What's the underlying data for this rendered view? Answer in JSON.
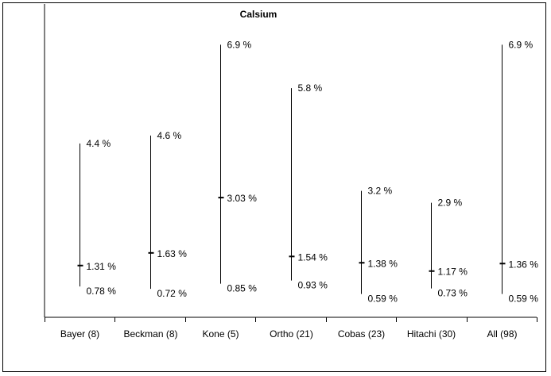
{
  "chart_data": {
    "type": "range",
    "title": "Calsium",
    "categories": [
      "Bayer (8)",
      "Beckman (8)",
      "Kone (5)",
      "Ortho (21)",
      "Cobas (23)",
      "Hitachi (30)",
      "All (98)"
    ],
    "series": [
      {
        "values": [
          0.78,
          0.72,
          0.85,
          0.93,
          0.59,
          0.73,
          0.59
        ]
      },
      {
        "values": [
          1.31,
          1.63,
          3.03,
          1.54,
          1.38,
          1.17,
          1.36
        ]
      },
      {
        "values": [
          4.4,
          4.6,
          6.9,
          5.8,
          3.2,
          2.9,
          6.9
        ]
      }
    ],
    "data_labels": {
      "min": [
        "0.78 %",
        "0.72 %",
        "0.85 %",
        "0.93 %",
        "0.59 %",
        "0.73 %",
        "0.59 %"
      ],
      "mid": [
        "1.31 %",
        "1.63 %",
        "3.03 %",
        "1.54 %",
        "1.38 %",
        "1.17 %",
        "1.36 %"
      ],
      "max": [
        "4.4 %",
        "4.6 %",
        "6.9 %",
        "5.8 %",
        "3.2 %",
        "2.9 %",
        "6.9 %"
      ]
    },
    "ylim": [
      0.0,
      7.9
    ],
    "grid": false,
    "legend": "none"
  }
}
